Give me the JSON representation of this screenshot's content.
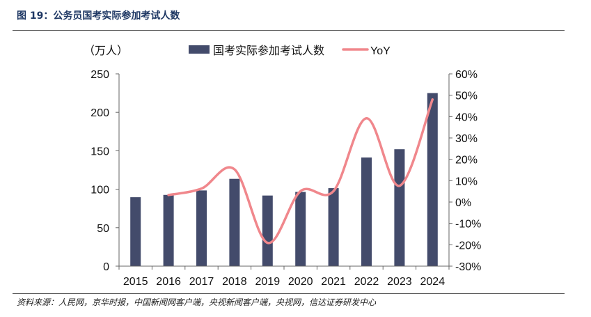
{
  "figure": {
    "title": "图 19：公务员国考实际参加考试人数",
    "source": "资料来源：人民网，京华时报，中国新闻网客户端，央视新闻客户端，央视网，信达证券研发中心"
  },
  "colors": {
    "bar": "#434b6b",
    "line": "#f0878c",
    "axis": "#666666"
  },
  "chart_data": {
    "type": "bar",
    "categories": [
      "2015",
      "2016",
      "2017",
      "2018",
      "2019",
      "2020",
      "2021",
      "2022",
      "2023",
      "2024"
    ],
    "series": [
      {
        "name": "国考实际参加考试人数",
        "type": "bar",
        "axis": "left",
        "values": [
          89.6,
          92.6,
          98.4,
          113.5,
          91.8,
          96.5,
          101.4,
          141.2,
          152.0,
          225.0
        ]
      },
      {
        "name": "YoY",
        "type": "line",
        "axis": "right",
        "unit": "%",
        "values": [
          null,
          3.3,
          6.3,
          15.3,
          -19.1,
          5.1,
          5.1,
          39.2,
          7.6,
          48.0
        ]
      }
    ],
    "y_left": {
      "label": "（万人）",
      "range": [
        0,
        250
      ],
      "ticks": [
        "0",
        "50",
        "100",
        "150",
        "200",
        "250"
      ]
    },
    "y_right": {
      "range": [
        -30,
        60
      ],
      "ticks": [
        "-30%",
        "-20%",
        "-10%",
        "0%",
        "10%",
        "20%",
        "30%",
        "40%",
        "50%",
        "60%"
      ]
    },
    "legend": {
      "position": "top"
    },
    "grid": false
  }
}
